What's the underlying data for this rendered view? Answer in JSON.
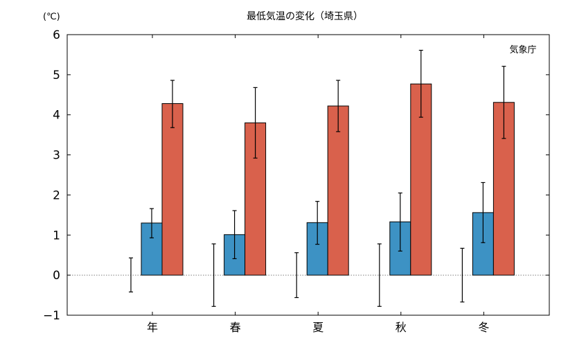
{
  "chart_data": {
    "type": "bar",
    "title": "最低気温の変化（埼玉県）",
    "unit_label": "(℃)",
    "source": "気象庁",
    "categories": [
      "年",
      "春",
      "夏",
      "秋",
      "冬"
    ],
    "ylim": [
      -1,
      6
    ],
    "yticks": [
      -1,
      0,
      1,
      2,
      3,
      4,
      5,
      6
    ],
    "grid": false,
    "series": [
      {
        "color": "#ffffff",
        "marker": "errorbar-only",
        "values": [
          0,
          0,
          0,
          0,
          0
        ],
        "err_low": [
          -0.42,
          -0.78,
          -0.56,
          -0.78,
          -0.67
        ],
        "err_high": [
          0.43,
          0.78,
          0.56,
          0.78,
          0.67
        ]
      },
      {
        "color": "#3d92c4",
        "values": [
          1.3,
          1.01,
          1.31,
          1.33,
          1.56
        ],
        "err_low": [
          0.93,
          0.41,
          0.77,
          0.6,
          0.81
        ],
        "err_high": [
          1.66,
          1.61,
          1.84,
          2.05,
          2.31
        ]
      },
      {
        "color": "#d9614c",
        "values": [
          4.28,
          3.8,
          4.22,
          4.77,
          4.31
        ],
        "err_low": [
          3.68,
          2.92,
          3.58,
          3.94,
          3.41
        ],
        "err_high": [
          4.86,
          4.68,
          4.86,
          5.61,
          5.21
        ]
      }
    ]
  }
}
